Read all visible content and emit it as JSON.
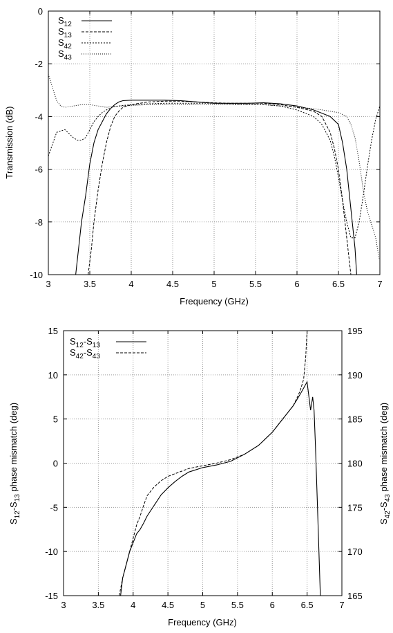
{
  "chart_data": [
    {
      "type": "line",
      "xlabel": "Frequency (GHz)",
      "ylabel": "Transmission (dB)",
      "xlim": [
        3,
        7
      ],
      "ylim": [
        -10,
        0
      ],
      "xticks": [
        "3",
        "3.5",
        "4",
        "4.5",
        "5",
        "5.5",
        "6",
        "6.5",
        "7"
      ],
      "yticks": [
        "0",
        "-2",
        "-4",
        "-6",
        "-8",
        "-10"
      ],
      "grid": true,
      "legend_position": "top-left",
      "series": [
        {
          "name": "S12",
          "label_main": "S",
          "label_sub": "12",
          "style": "solid",
          "x": [
            3.33,
            3.4,
            3.45,
            3.5,
            3.55,
            3.6,
            3.65,
            3.7,
            3.75,
            3.8,
            3.85,
            3.9,
            4.0,
            4.2,
            4.4,
            4.6,
            4.8,
            5.0,
            5.2,
            5.4,
            5.6,
            5.8,
            6.0,
            6.2,
            6.4,
            6.5,
            6.55,
            6.6,
            6.65,
            6.7,
            6.72
          ],
          "y": [
            -10,
            -8.0,
            -7.0,
            -5.8,
            -5.0,
            -4.5,
            -4.2,
            -3.9,
            -3.7,
            -3.55,
            -3.45,
            -3.4,
            -3.38,
            -3.38,
            -3.38,
            -3.4,
            -3.45,
            -3.5,
            -3.5,
            -3.5,
            -3.48,
            -3.52,
            -3.6,
            -3.75,
            -4.0,
            -4.3,
            -5.0,
            -6.0,
            -7.5,
            -9.0,
            -10
          ]
        },
        {
          "name": "S13",
          "label_main": "S",
          "label_sub": "13",
          "style": "dashed",
          "x": [
            3.48,
            3.52,
            3.55,
            3.6,
            3.65,
            3.7,
            3.75,
            3.8,
            3.85,
            3.9,
            4.0,
            4.2,
            4.4,
            4.6,
            4.8,
            5.0,
            5.2,
            5.4,
            5.6,
            5.8,
            6.0,
            6.2,
            6.3,
            6.4,
            6.45,
            6.5,
            6.55,
            6.6,
            6.65
          ],
          "y": [
            -10,
            -9.0,
            -8.0,
            -6.8,
            -5.8,
            -5.0,
            -4.4,
            -4.0,
            -3.8,
            -3.65,
            -3.55,
            -3.45,
            -3.42,
            -3.42,
            -3.45,
            -3.48,
            -3.5,
            -3.5,
            -3.5,
            -3.55,
            -3.65,
            -3.8,
            -4.0,
            -4.6,
            -5.2,
            -6.0,
            -7.2,
            -8.6,
            -10
          ]
        },
        {
          "name": "S42",
          "label_main": "S",
          "label_sub": "42",
          "style": "dotted-dense",
          "x": [
            3.0,
            3.1,
            3.2,
            3.3,
            3.35,
            3.4,
            3.45,
            3.5,
            3.55,
            3.6,
            3.65,
            3.7,
            3.75,
            3.8,
            3.9,
            4.0,
            4.2,
            4.4,
            4.6,
            4.8,
            5.0,
            5.2,
            5.4,
            5.6,
            5.8,
            6.0,
            6.2,
            6.3,
            6.4,
            6.45,
            6.5,
            6.55,
            6.6,
            6.65,
            6.7,
            6.75,
            6.8,
            6.85,
            6.9,
            6.95,
            7.0
          ],
          "y": [
            -5.5,
            -4.6,
            -4.5,
            -4.8,
            -4.9,
            -4.9,
            -4.8,
            -4.5,
            -4.2,
            -4.0,
            -3.85,
            -3.75,
            -3.68,
            -3.62,
            -3.58,
            -3.55,
            -3.52,
            -3.5,
            -3.5,
            -3.5,
            -3.5,
            -3.52,
            -3.55,
            -3.55,
            -3.6,
            -3.75,
            -4.0,
            -4.3,
            -4.9,
            -5.5,
            -6.3,
            -7.2,
            -8.0,
            -8.6,
            -8.6,
            -8.0,
            -7.0,
            -5.9,
            -4.9,
            -4.1,
            -3.6
          ]
        },
        {
          "name": "S43",
          "label_main": "S",
          "label_sub": "43",
          "style": "dotted-sparse",
          "x": [
            3.0,
            3.05,
            3.1,
            3.15,
            3.2,
            3.3,
            3.4,
            3.5,
            3.6,
            3.7,
            3.8,
            4.0,
            4.2,
            4.4,
            4.6,
            4.8,
            5.0,
            5.2,
            5.4,
            5.6,
            5.8,
            6.0,
            6.2,
            6.4,
            6.5,
            6.6,
            6.65,
            6.7,
            6.75,
            6.8,
            6.85,
            6.9,
            6.95,
            6.99
          ],
          "y": [
            -2.4,
            -2.9,
            -3.4,
            -3.6,
            -3.65,
            -3.6,
            -3.55,
            -3.55,
            -3.6,
            -3.65,
            -3.62,
            -3.58,
            -3.55,
            -3.55,
            -3.55,
            -3.55,
            -3.55,
            -3.55,
            -3.55,
            -3.55,
            -3.6,
            -3.65,
            -3.7,
            -3.8,
            -3.85,
            -4.0,
            -4.3,
            -4.8,
            -5.7,
            -6.8,
            -7.6,
            -8.1,
            -8.6,
            -9.4
          ]
        }
      ]
    },
    {
      "type": "line",
      "xlabel": "Frequency (GHz)",
      "ylabel_left_parts": [
        "S",
        "12",
        "-S",
        "13",
        " phase mismatch (deg)"
      ],
      "ylabel_right_parts": [
        "S",
        "42",
        "-S",
        "43",
        " phase mismatch (deg)"
      ],
      "xlim": [
        3,
        7
      ],
      "ylim": [
        -15,
        15
      ],
      "y2lim": [
        165,
        195
      ],
      "xticks": [
        "3",
        "3.5",
        "4",
        "4.5",
        "5",
        "5.5",
        "6",
        "6.5",
        "7"
      ],
      "yticks": [
        "15",
        "10",
        "5",
        "0",
        "-5",
        "-10",
        "-15"
      ],
      "y2ticks": [
        "195",
        "190",
        "185",
        "180",
        "175",
        "170",
        "165"
      ],
      "grid": true,
      "legend_position": "top-left",
      "series": [
        {
          "name": "S12-S13",
          "label_parts": [
            "S",
            "12",
            "-S",
            "13"
          ],
          "style": "solid",
          "axis": "left",
          "x": [
            3.82,
            3.85,
            3.9,
            3.95,
            4.0,
            4.05,
            4.1,
            4.15,
            4.2,
            4.3,
            4.4,
            4.5,
            4.6,
            4.7,
            4.8,
            5.0,
            5.2,
            5.4,
            5.6,
            5.8,
            6.0,
            6.1,
            6.2,
            6.3,
            6.4,
            6.45,
            6.5,
            6.55,
            6.58,
            6.6,
            6.62,
            6.65,
            6.69
          ],
          "y": [
            -15,
            -13.0,
            -11.5,
            -10.0,
            -9.0,
            -8.0,
            -7.5,
            -6.8,
            -6.0,
            -4.8,
            -3.6,
            -2.8,
            -2.1,
            -1.5,
            -1.0,
            -0.5,
            -0.2,
            0.2,
            1.0,
            2.0,
            3.5,
            4.5,
            5.5,
            6.5,
            7.8,
            8.5,
            9.2,
            6.0,
            7.5,
            6.0,
            2.0,
            -5.0,
            -15
          ]
        },
        {
          "name": "S42-S43",
          "label_parts": [
            "S",
            "42",
            "-S",
            "43"
          ],
          "style": "dashed",
          "axis": "right",
          "x": [
            3.8,
            3.85,
            3.9,
            3.95,
            4.0,
            4.05,
            4.1,
            4.15,
            4.2,
            4.3,
            4.4,
            4.5,
            4.6,
            4.7,
            4.8,
            5.0,
            5.2,
            5.4,
            5.6,
            5.8,
            6.0,
            6.1,
            6.2,
            6.3,
            6.35,
            6.4,
            6.45,
            6.48,
            6.5
          ],
          "y": [
            165,
            167.0,
            168.5,
            170.0,
            171.5,
            173.0,
            174.0,
            175.2,
            176.3,
            177.3,
            178.0,
            178.5,
            178.8,
            179.1,
            179.4,
            179.7,
            180.0,
            180.4,
            181.0,
            182.0,
            183.5,
            184.5,
            185.5,
            186.5,
            187.3,
            188.2,
            189.5,
            192.0,
            195.0
          ]
        }
      ]
    }
  ]
}
